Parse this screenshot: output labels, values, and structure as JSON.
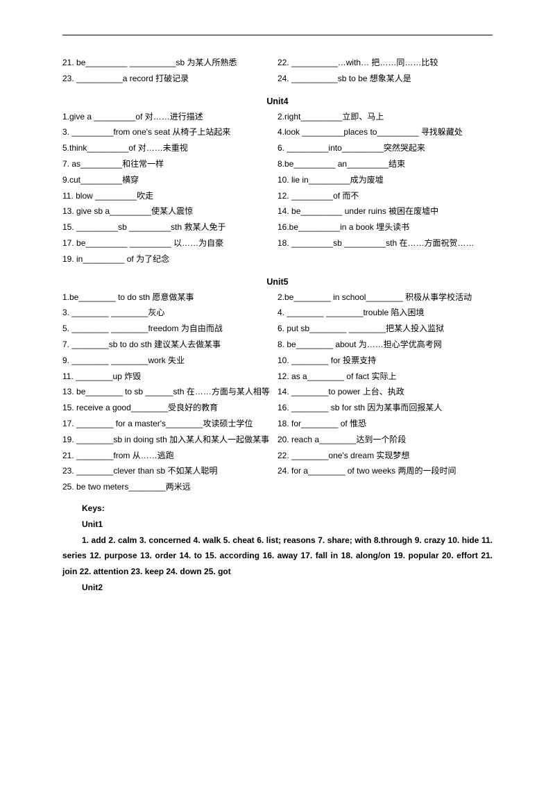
{
  "top": {
    "left_21": "21. be_________  __________sb  为某人所熟悉",
    "right_22": "22. __________…with…  把……同……比较",
    "left_23": "23. __________a record  打破记录",
    "right_24": "24. __________sb to be  想象某人是"
  },
  "unit4": {
    "title": "Unit4",
    "rows": [
      [
        "1.give a _________of 对……进行描述",
        "2.right_________立即、马上"
      ],
      [
        "3. _________from one's seat 从椅子上站起来",
        "4.look _________places to_________ 寻找躲藏处"
      ],
      [
        "5.think_________of 对……未重视",
        "6. _________into_________突然哭起来"
      ],
      [
        "7. as_________和往常一样",
        "8.be_________ an_________结束"
      ],
      [
        "9.cut_________横穿",
        "10. lie in_________成为废墟"
      ],
      [
        "11. blow _________吹走",
        "12. _________of 而不"
      ],
      [
        "13. give sb a_________使某人震惊",
        "14. be_________ under ruins 被困在废墟中"
      ],
      [
        "15. _________sb _________sth 救某人免于",
        "16.be_________in a book 埋头读书"
      ],
      [
        "17. be_________ _________ 以……为自豪",
        "18. _________sb _________sth 在……方面祝贺……"
      ],
      [
        "19. in_________ of 为了纪念",
        ""
      ]
    ]
  },
  "unit5": {
    "title": "Unit5",
    "rows": [
      [
        "1.be________ to do sth 愿意做某事",
        "2.be________ in  school________  积极从事学校活动"
      ],
      [
        "3. ________  ________灰心",
        "4. ________  ________trouble 陷入困境"
      ],
      [
        "5. ________  ________freedom  为自由而战",
        "6. put sb________ ________把某人投入监狱"
      ],
      [
        "7. ________sb to do sth 建议某人去做某事",
        "8. be________ about 为……担心学优高考网"
      ],
      [
        "9. ________  ________work 失业",
        "10. ________ for 投票支持"
      ],
      [
        "11. ________up 炸毁",
        "12. as a________ of fact 实际上"
      ],
      [
        "13. be________ to sb ______sth 在……方面与某人相等",
        "14. ________to power 上台、执政"
      ],
      [
        "15. receive a good________受良好的教育",
        "16. ________ sb for sth 因为某事而回报某人"
      ],
      [
        "17. ________ for a master's________攻读硕士学位",
        "18. for________ of 惟恐"
      ],
      [
        "19. ________sb in doing sth 加入某人和某人一起做某事",
        "20. reach a________达到一个阶段"
      ],
      [
        "21. ________from 从……逃跑",
        "22. ________one's dream 实现梦想"
      ],
      [
        "23. ________clever than sb 不如某人聪明",
        "24. for a________ of two weeks 两周的一段时间"
      ],
      [
        "25. be two meters________两米远",
        ""
      ]
    ]
  },
  "keys": {
    "title": "Keys:",
    "unit1_label": "Unit1",
    "unit1_body": "1. add    2. calm    3. concerned    4. walk    5. cheat    6. list; reasons    7. share; with 8.through    9. crazy   10. hide   11. series   12. purpose   13. order   14. to   15. according 16. away   17. fall in    18. along/on    19. popular    20. effort    21. join    22. attention 23. keep   24. down   25. got",
    "unit2_label": "Unit2"
  },
  "style": {
    "font_color": "#000000",
    "background": "#ffffff",
    "font_size_pt": 10,
    "title_weight": "bold"
  }
}
